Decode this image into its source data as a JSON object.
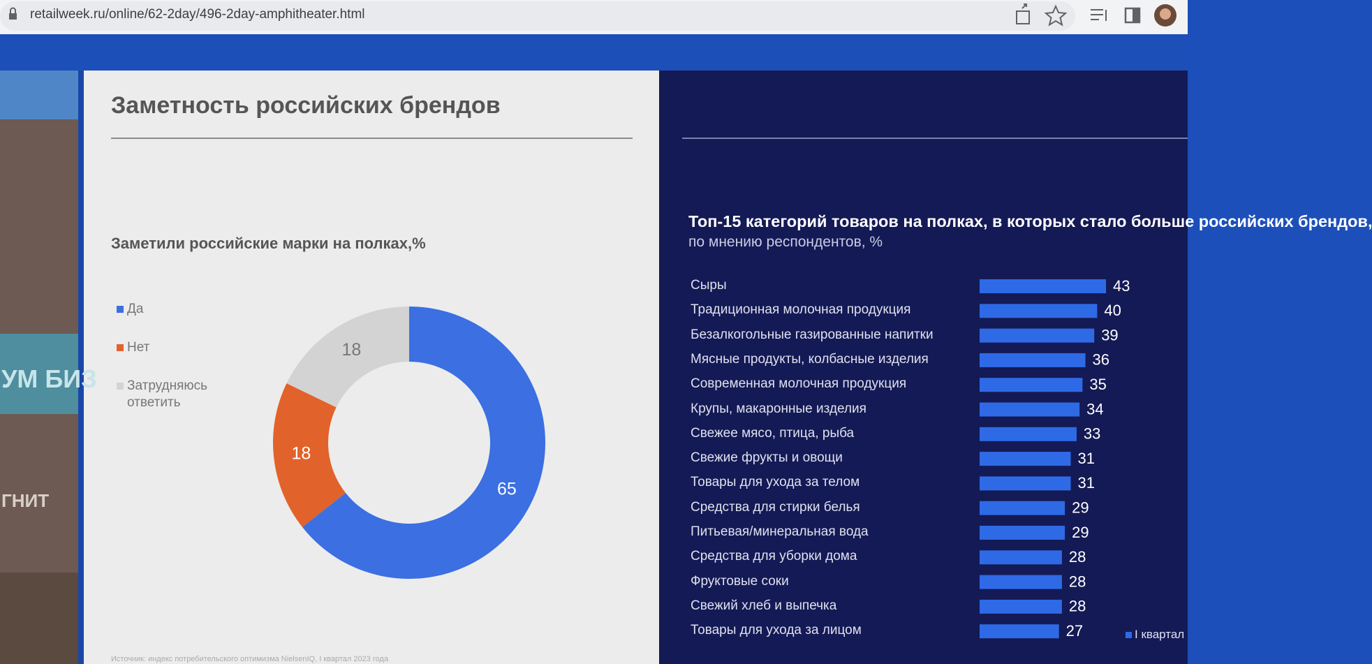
{
  "browser": {
    "url": "retailweek.ru/online/62-2day/496-2day-amphitheater.html"
  },
  "background": {
    "texts": [
      "УМ БИЗ",
      "ГНИТ"
    ]
  },
  "slide": {
    "title": "Заметность российских брендов",
    "source": "Источник: индекс потребительского оптимизма NielsenIQ, I квартал 2023 года"
  },
  "chart_data": [
    {
      "type": "pie",
      "title": "Заметили российские марки на полках,%",
      "categories": [
        "Да",
        "Нет",
        "Затрудняюсь ответить"
      ],
      "values": [
        65,
        18,
        18
      ],
      "colors": [
        "#3b6fe2",
        "#e2622b",
        "#d3d3d3"
      ],
      "legend": "left"
    },
    {
      "type": "bar",
      "title": "Топ-15 категорий товаров на полках, в которых стало больше российских брендов,",
      "subtitle": "по мнению респондентов, %",
      "categories": [
        "Сыры",
        "Традиционная молочная продукция",
        "Безалкогольные газированные напитки",
        "Мясные продукты, колбасные изделия",
        "Современная молочная продукция",
        "Крупы, макаронные изделия",
        "Свежее мясо, птица, рыба",
        "Свежие фрукты и овощи",
        "Товары для ухода за телом",
        "Средства для стирки белья",
        "Питьевая/минеральная вода",
        "Средства для уборки дома",
        "Фруктовые соки",
        "Свежий хлеб и выпечка",
        "Товары для ухода за лицом"
      ],
      "series": [
        {
          "name": "I квартал",
          "color": "#2f6ae6",
          "values": [
            43,
            40,
            39,
            36,
            35,
            34,
            33,
            31,
            31,
            29,
            29,
            28,
            28,
            28,
            27
          ]
        }
      ],
      "legend": "bottom-right"
    }
  ]
}
